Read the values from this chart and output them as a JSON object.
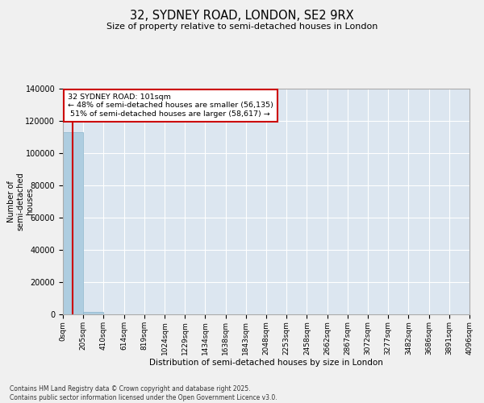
{
  "title": "32, SYDNEY ROAD, LONDON, SE2 9RX",
  "subtitle": "Size of property relative to semi-detached houses in London",
  "xlabel": "Distribution of semi-detached houses by size in London",
  "ylabel": "Number of\nsemi-detached\nhouses",
  "property_size": 101,
  "property_label": "32 SYDNEY ROAD: 101sqm",
  "pct_smaller": 48,
  "pct_larger": 51,
  "count_smaller": 56135,
  "count_larger": 58617,
  "annotation_type": "semi-detached",
  "bar_color": "#aecde0",
  "bar_edge_color": "#8ab4cc",
  "vline_color": "#cc0000",
  "annotation_box_color": "#cc0000",
  "axes_bg_color": "#dce6f0",
  "fig_bg_color": "#f0f0f0",
  "grid_color": "#ffffff",
  "footnote": "Contains HM Land Registry data © Crown copyright and database right 2025.\nContains public sector information licensed under the Open Government Licence v3.0.",
  "bin_edges": [
    0,
    205,
    410,
    614,
    819,
    1024,
    1229,
    1434,
    1638,
    1843,
    2048,
    2253,
    2458,
    2662,
    2867,
    3072,
    3277,
    3482,
    3686,
    3891,
    4096
  ],
  "bin_heights": [
    113000,
    1700,
    100,
    30,
    15,
    10,
    8,
    6,
    5,
    4,
    3,
    3,
    2,
    2,
    2,
    2,
    2,
    1,
    1,
    1
  ],
  "ylim": [
    0,
    140000
  ],
  "yticks": [
    0,
    20000,
    40000,
    60000,
    80000,
    100000,
    120000,
    140000
  ]
}
